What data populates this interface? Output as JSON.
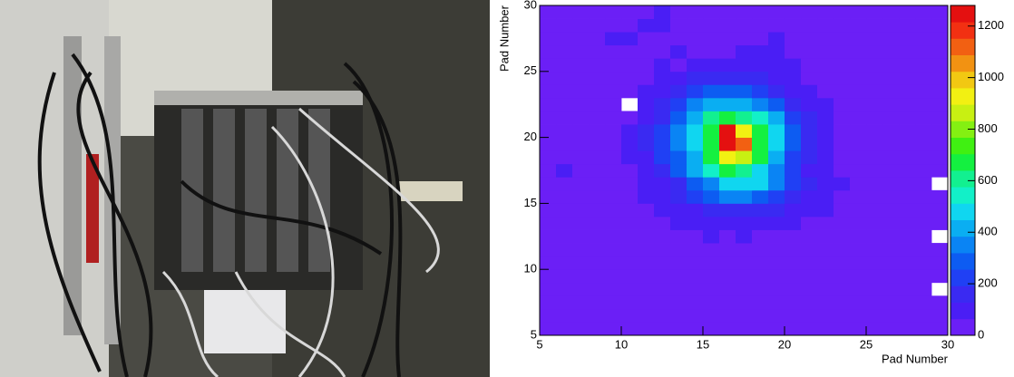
{
  "chart_data": {
    "type": "heatmap",
    "xlabel": "Pad Number",
    "ylabel": "Pad Number",
    "xlim": [
      5,
      30
    ],
    "ylim": [
      5,
      30
    ],
    "xticks": [
      5,
      10,
      15,
      20,
      25,
      30
    ],
    "yticks": [
      5,
      10,
      15,
      20,
      25,
      30
    ],
    "zlim": [
      0,
      1280
    ],
    "zticks": [
      0,
      200,
      400,
      600,
      800,
      1000,
      1200
    ],
    "palette": [
      "#6b1ff6",
      "#4a1ef5",
      "#3a2af2",
      "#2040f4",
      "#0d5cf2",
      "#0a84f4",
      "#0aaef2",
      "#10d6f0",
      "#12f0c8",
      "#12f090",
      "#14f040",
      "#40f012",
      "#84f012",
      "#c8f012",
      "#f2f012",
      "#f2c812",
      "#f29212",
      "#f26012",
      "#f23012",
      "#e41010"
    ],
    "z": [
      [
        20,
        20,
        20,
        20,
        20,
        20,
        20,
        20,
        20,
        20,
        20,
        20,
        20,
        20,
        20,
        20,
        20,
        20,
        20,
        20,
        20,
        20,
        20,
        20,
        20
      ],
      [
        20,
        20,
        20,
        20,
        20,
        20,
        20,
        20,
        20,
        20,
        20,
        20,
        20,
        20,
        20,
        20,
        20,
        20,
        20,
        20,
        20,
        20,
        20,
        20,
        20
      ],
      [
        20,
        20,
        20,
        20,
        20,
        20,
        20,
        20,
        20,
        20,
        20,
        20,
        20,
        20,
        20,
        20,
        20,
        20,
        20,
        20,
        20,
        20,
        20,
        20,
        20
      ],
      [
        20,
        20,
        20,
        20,
        20,
        20,
        20,
        20,
        20,
        20,
        20,
        20,
        20,
        20,
        20,
        20,
        20,
        20,
        20,
        20,
        20,
        20,
        20,
        20,
        null
      ],
      [
        20,
        20,
        20,
        20,
        20,
        20,
        20,
        20,
        20,
        20,
        20,
        20,
        20,
        20,
        20,
        20,
        20,
        20,
        20,
        20,
        20,
        20,
        20,
        20,
        20
      ],
      [
        20,
        20,
        20,
        20,
        20,
        20,
        20,
        20,
        20,
        20,
        20,
        20,
        20,
        20,
        20,
        20,
        20,
        20,
        20,
        20,
        20,
        20,
        20,
        20,
        20
      ],
      [
        20,
        20,
        20,
        20,
        20,
        20,
        20,
        20,
        20,
        20,
        20,
        20,
        20,
        20,
        20,
        20,
        20,
        20,
        20,
        20,
        20,
        20,
        20,
        20,
        20
      ],
      [
        20,
        20,
        20,
        20,
        20,
        20,
        20,
        20,
        20,
        20,
        90,
        20,
        90,
        20,
        20,
        20,
        20,
        20,
        20,
        20,
        20,
        20,
        20,
        20,
        null
      ],
      [
        20,
        20,
        20,
        20,
        20,
        20,
        20,
        20,
        80,
        90,
        110,
        100,
        120,
        90,
        80,
        70,
        20,
        20,
        20,
        20,
        20,
        20,
        20,
        20,
        20
      ],
      [
        20,
        20,
        20,
        20,
        20,
        20,
        20,
        70,
        90,
        120,
        150,
        180,
        190,
        170,
        140,
        110,
        90,
        70,
        60,
        20,
        20,
        20,
        20,
        20,
        20
      ],
      [
        20,
        20,
        20,
        20,
        20,
        20,
        70,
        100,
        140,
        200,
        260,
        320,
        340,
        310,
        250,
        180,
        120,
        80,
        60,
        20,
        20,
        20,
        20,
        20,
        20
      ],
      [
        20,
        20,
        20,
        20,
        20,
        20,
        80,
        120,
        190,
        280,
        380,
        470,
        500,
        460,
        360,
        250,
        150,
        90,
        70,
        20,
        20,
        20,
        20,
        20,
        null
      ],
      [
        20,
        90,
        20,
        20,
        20,
        60,
        110,
        170,
        280,
        420,
        560,
        640,
        590,
        480,
        340,
        200,
        110,
        70,
        60,
        50,
        20,
        20,
        20,
        20,
        20
      ],
      [
        20,
        20,
        20,
        20,
        20,
        70,
        120,
        200,
        300,
        420,
        650,
        900,
        880,
        650,
        420,
        250,
        130,
        80,
        60,
        50,
        20,
        20,
        20,
        20,
        20
      ],
      [
        20,
        20,
        20,
        20,
        20,
        70,
        130,
        230,
        360,
        480,
        700,
        1250,
        1100,
        700,
        460,
        280,
        150,
        90,
        60,
        50,
        20,
        20,
        20,
        20,
        20
      ],
      [
        20,
        20,
        20,
        20,
        20,
        70,
        130,
        220,
        350,
        470,
        690,
        1280,
        920,
        680,
        450,
        270,
        150,
        90,
        60,
        50,
        20,
        20,
        20,
        20,
        20
      ],
      [
        20,
        20,
        20,
        20,
        20,
        60,
        110,
        190,
        300,
        430,
        600,
        640,
        620,
        560,
        400,
        240,
        130,
        80,
        60,
        40,
        20,
        20,
        20,
        20,
        20
      ],
      [
        20,
        20,
        20,
        20,
        20,
        null,
        90,
        150,
        240,
        330,
        420,
        440,
        420,
        380,
        290,
        190,
        110,
        70,
        50,
        40,
        20,
        20,
        20,
        20,
        20
      ],
      [
        20,
        20,
        20,
        20,
        20,
        20,
        70,
        110,
        170,
        240,
        290,
        300,
        280,
        240,
        180,
        120,
        80,
        60,
        40,
        20,
        20,
        20,
        20,
        20,
        20
      ],
      [
        20,
        20,
        20,
        20,
        20,
        20,
        20,
        80,
        110,
        150,
        180,
        190,
        180,
        160,
        120,
        90,
        60,
        40,
        20,
        20,
        20,
        20,
        20,
        20,
        20
      ],
      [
        20,
        20,
        20,
        20,
        20,
        20,
        20,
        70,
        20,
        80,
        100,
        110,
        120,
        110,
        100,
        80,
        60,
        20,
        20,
        20,
        20,
        20,
        20,
        20,
        20
      ],
      [
        20,
        20,
        20,
        20,
        20,
        20,
        20,
        20,
        70,
        20,
        20,
        20,
        70,
        80,
        90,
        20,
        20,
        20,
        20,
        20,
        20,
        20,
        20,
        20,
        20
      ],
      [
        20,
        20,
        20,
        20,
        90,
        90,
        20,
        20,
        20,
        20,
        20,
        20,
        20,
        20,
        90,
        20,
        20,
        20,
        20,
        20,
        20,
        20,
        20,
        20,
        20
      ],
      [
        20,
        20,
        20,
        20,
        20,
        20,
        90,
        90,
        20,
        20,
        20,
        20,
        20,
        20,
        20,
        20,
        20,
        20,
        20,
        20,
        20,
        20,
        20,
        20,
        20
      ],
      [
        20,
        20,
        20,
        20,
        20,
        20,
        20,
        90,
        20,
        20,
        20,
        20,
        20,
        20,
        20,
        20,
        20,
        20,
        20,
        20,
        20,
        20,
        20,
        20,
        20
      ]
    ]
  }
}
